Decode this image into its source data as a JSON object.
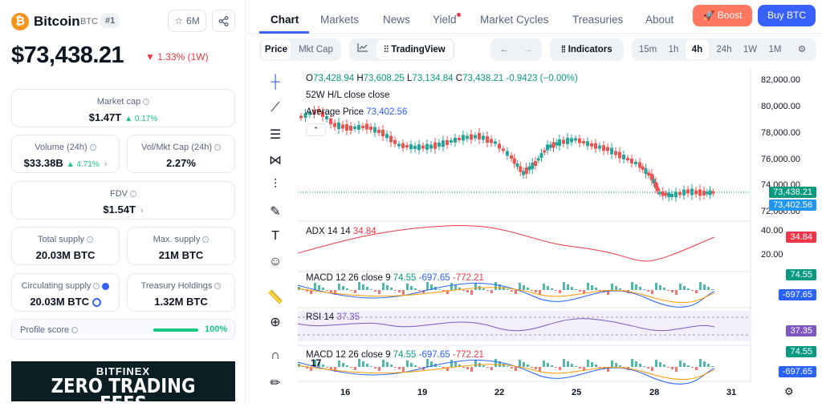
{
  "coin": {
    "name": "Bitcoin",
    "symbol": "BTC",
    "rank": "#1",
    "logo_letter": "₿",
    "watchlist": "6M"
  },
  "price": {
    "value": "$73,438.21",
    "change": "1.33% (1W)"
  },
  "stats": {
    "market_cap": {
      "label": "Market cap",
      "value": "$1.47T",
      "change": "0.17%"
    },
    "volume": {
      "label": "Volume (24h)",
      "value": "$33.38B",
      "change": "4.71%"
    },
    "vol_mkt": {
      "label": "Vol/Mkt Cap (24h)",
      "value": "2.27%"
    },
    "fdv": {
      "label": "FDV",
      "value": "$1.54T"
    },
    "total_supply": {
      "label": "Total supply",
      "value": "20.03M BTC"
    },
    "max_supply": {
      "label": "Max. supply",
      "value": "21M BTC"
    },
    "circ_supply": {
      "label": "Circulating supply",
      "value": "20.03M BTC"
    },
    "treasury": {
      "label": "Treasury Holdings",
      "value": "1.32M BTC"
    }
  },
  "profile": {
    "label": "Profile score",
    "value": "100%",
    "fill": 1.0
  },
  "ad": {
    "brand": "BITFINEX",
    "text": "ZERO TRADING FEES"
  },
  "tabs": [
    "Chart",
    "Markets",
    "News",
    "Yield",
    "Market Cycles",
    "Treasuries",
    "About"
  ],
  "buttons": {
    "boost": "Boost",
    "buy": "Buy BTC"
  },
  "toolbar": {
    "price": "Price",
    "mktcap": "Mkt Cap",
    "tradingview": "TradingView",
    "indicators": "Indicators",
    "intervals": [
      "15m",
      "1h",
      "4h",
      "24h",
      "1W",
      "1M"
    ],
    "active_interval": "4h"
  },
  "legend": {
    "ohlc": {
      "o_label": "O",
      "o": "73,428.94",
      "h_label": "H",
      "h": "73,608.25",
      "l_label": "L",
      "l": "73,134.84",
      "c_label": "C",
      "c": "73,438.21",
      "chg": "-0.9423 (−0.00%)"
    },
    "hl": "52W H/L close close",
    "avg_label": "Average Price",
    "avg": "73,402.56",
    "adx_label": "ADX 14 14",
    "adx": "34.84",
    "macd_label": "MACD 12 26 close 9",
    "macd1": "74.55",
    "macd2": "-697.65",
    "macd3": "-772.21",
    "rsi_label": "RSI 14",
    "rsi": "37.35"
  },
  "price_tags": {
    "last": "73,438.21",
    "avg": "73,402.56",
    "adx": "34.84",
    "macd1": "74.55",
    "macd2": "-697.65",
    "rsi": "37.35",
    "macd1b": "74.55",
    "macd2b": "-697.65"
  },
  "y_ticks": [
    "82,000.00",
    "80,000.00",
    "78,000.00",
    "76,000.00",
    "74,000.00",
    "72,000.00",
    "40.00",
    "20.00"
  ],
  "x_ticks": [
    "16",
    "19",
    "22",
    "25",
    "28",
    "31"
  ],
  "colors": {
    "up": "#26a69a",
    "down": "#ef5350",
    "accent": "#3861fb",
    "orange": "#ff775f",
    "macd_line": "#2962ff",
    "signal_line": "#ff9800",
    "rsi": "#7e57c2",
    "adx": "#f23645"
  }
}
